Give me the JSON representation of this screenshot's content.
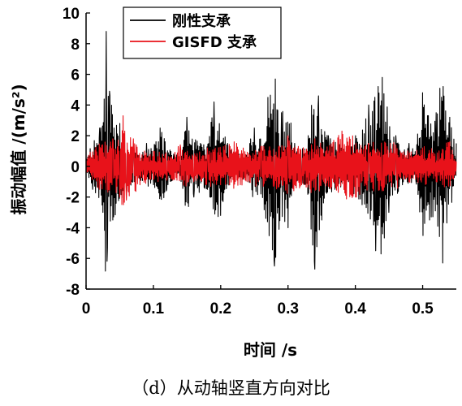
{
  "chart_data": {
    "type": "line",
    "xlabel": "时间 /s",
    "ylabel": "振动幅值 /(m/s²)",
    "xlim": [
      0,
      0.55
    ],
    "ylim": [
      -8,
      10
    ],
    "xticks": [
      0,
      0.1,
      0.2,
      0.3,
      0.4,
      0.5
    ],
    "xtick_labels": [
      "0",
      "0.1",
      "0.2",
      "0.3",
      "0.4",
      "0.5"
    ],
    "yticks": [
      -8,
      -6,
      -4,
      -2,
      0,
      2,
      4,
      6,
      8,
      10
    ],
    "ytick_labels": [
      "-8",
      "-6",
      "-4",
      "-2",
      "0",
      "2",
      "4",
      "6",
      "8",
      "10"
    ],
    "grid": false,
    "legend_position": "top-left",
    "series": [
      {
        "name": "刚性支承",
        "color": "#000000",
        "x": [
          0,
          0.01,
          0.02,
          0.025,
          0.03,
          0.032,
          0.035,
          0.04,
          0.05,
          0.06,
          0.07,
          0.08,
          0.09,
          0.1,
          0.11,
          0.12,
          0.13,
          0.14,
          0.15,
          0.16,
          0.17,
          0.18,
          0.19,
          0.2,
          0.21,
          0.22,
          0.23,
          0.24,
          0.25,
          0.26,
          0.27,
          0.28,
          0.29,
          0.3,
          0.31,
          0.32,
          0.33,
          0.34,
          0.345,
          0.35,
          0.36,
          0.37,
          0.38,
          0.39,
          0.4,
          0.41,
          0.42,
          0.43,
          0.44,
          0.45,
          0.46,
          0.47,
          0.48,
          0.49,
          0.5,
          0.51,
          0.52,
          0.53,
          0.54,
          0.55
        ],
        "y": [
          0.5,
          -1.5,
          2.5,
          -3.0,
          8.8,
          -5.3,
          4.9,
          -3.5,
          2.8,
          -1.5,
          1.2,
          -0.8,
          1.5,
          -1.2,
          2.5,
          -1.5,
          0.8,
          -0.6,
          3.2,
          -2.0,
          1.5,
          -1.5,
          4.2,
          -3.2,
          1.5,
          -0.8,
          0.8,
          -1.0,
          2.5,
          -1.8,
          4.5,
          -6.5,
          3.5,
          -4.0,
          1.5,
          -1.0,
          2.0,
          -6.7,
          4.6,
          -3.5,
          2.0,
          -1.5,
          1.5,
          -1.0,
          2.0,
          -2.5,
          4.0,
          -5.5,
          5.8,
          -3.0,
          2.0,
          -1.2,
          1.5,
          -1.0,
          4.8,
          -3.5,
          3.5,
          -6.3,
          3.2,
          1.5
        ]
      },
      {
        "name": "GISFD 支承",
        "color": "#e8121a",
        "x": [
          0,
          0.02,
          0.04,
          0.05,
          0.055,
          0.06,
          0.07,
          0.08,
          0.1,
          0.12,
          0.14,
          0.16,
          0.18,
          0.2,
          0.22,
          0.24,
          0.26,
          0.28,
          0.3,
          0.32,
          0.34,
          0.36,
          0.38,
          0.4,
          0.42,
          0.44,
          0.46,
          0.48,
          0.5,
          0.52,
          0.54,
          0.55
        ],
        "y": [
          0.5,
          -1.5,
          1.8,
          -2.0,
          3.3,
          -2.2,
          1.8,
          -1.2,
          1.0,
          -0.9,
          1.4,
          -1.0,
          1.2,
          -1.2,
          1.6,
          -1.0,
          1.3,
          -1.3,
          2.0,
          -1.2,
          1.8,
          -1.3,
          2.3,
          -2.0,
          1.5,
          -1.6,
          1.4,
          -1.0,
          1.2,
          -1.0,
          1.6,
          0.3
        ]
      }
    ]
  },
  "caption": "（d）从动轴竖直方向对比"
}
